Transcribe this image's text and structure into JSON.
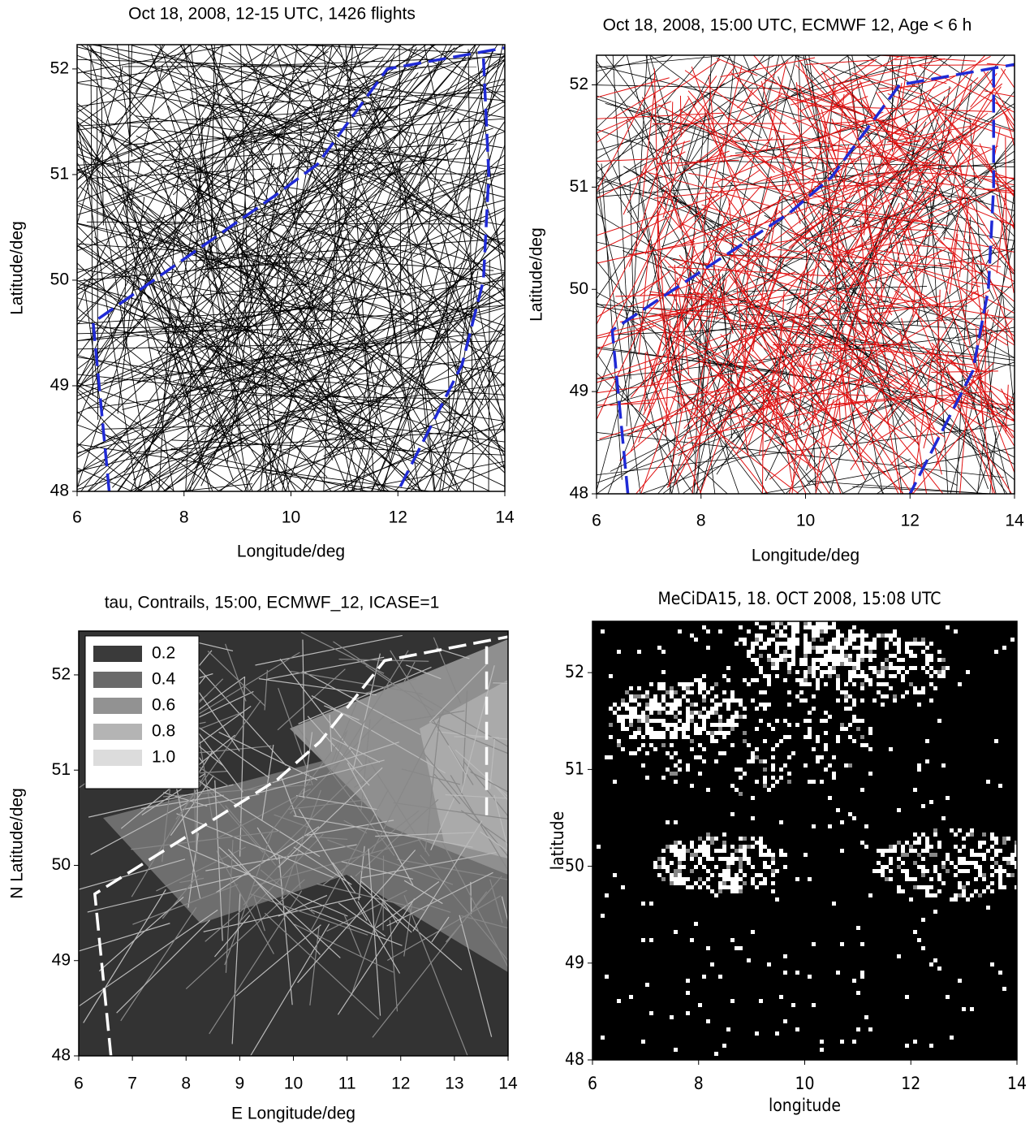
{
  "chart_data": [
    {
      "type": "line",
      "title": "Oct 18, 2008, 12-15 UTC, 1426 flights",
      "xlabel": "Longitude/deg",
      "ylabel": "Latitude/deg",
      "xlim": [
        6,
        14
      ],
      "ylim": [
        48,
        52.23
      ],
      "xticks": [
        6,
        8,
        10,
        12,
        14
      ],
      "yticks": [
        48,
        49,
        50,
        51,
        52
      ],
      "series": [
        {
          "color": "#1f2ad6",
          "linestyle": "dashed",
          "x": [
            6.6,
            6.3,
            9.7,
            10.5,
            11.8,
            14,
            null,
            13.6,
            13.7,
            13.6,
            13.2,
            12
          ],
          "values": [
            48,
            49.6,
            50.8,
            51.1,
            52,
            52.2,
            null,
            52.1,
            51,
            50,
            49.2,
            48
          ]
        }
      ]
    },
    {
      "type": "line",
      "title": "Oct 18, 2008, 15:00 UTC, ECMWF 12, Age < 6 h",
      "xlabel": "Longitude/deg",
      "ylabel": "Latitude/deg",
      "xlim": [
        6,
        14
      ],
      "ylim": [
        48,
        52.29
      ],
      "xticks": [
        6,
        8,
        10,
        12,
        14
      ],
      "yticks": [
        48,
        49,
        50,
        51,
        52
      ],
      "series": [
        {
          "color": "#1f2ad6",
          "linestyle": "dashed",
          "x": [
            6.6,
            6.3,
            9.7,
            10.5,
            11.8,
            14,
            null,
            13.6,
            13.6,
            13.5,
            13.2,
            12
          ],
          "values": [
            48,
            49.6,
            50.75,
            51.1,
            52,
            52.2,
            null,
            52.15,
            51,
            50,
            49.2,
            48
          ]
        }
      ]
    },
    {
      "type": "line",
      "title": "tau, Contrails, 15:00, ECMWF_12, ICASE=1",
      "xlabel": "E Longitude/deg",
      "ylabel": "N Latitude/deg",
      "xlim": [
        6,
        14
      ],
      "ylim": [
        48,
        52.46
      ],
      "xticks": [
        6,
        7,
        8,
        9,
        10,
        11,
        12,
        13,
        14
      ],
      "yticks": [
        48,
        49,
        50,
        51,
        52
      ],
      "legend": {
        "location": "upper left",
        "entries": [
          {
            "label": "0.2",
            "color": "#3a3a3a"
          },
          {
            "label": "0.4",
            "color": "#6a6a6a"
          },
          {
            "label": "0.6",
            "color": "#929292"
          },
          {
            "label": "0.8",
            "color": "#b4b4b4"
          },
          {
            "label": "1.0",
            "color": "#dcdcdc"
          }
        ]
      },
      "series": [
        {
          "color": "#ffffff",
          "linestyle": "dashed",
          "x": [
            6.6,
            6.3,
            9.7,
            10.5,
            11.7,
            14,
            null,
            13.6,
            13.6
          ],
          "values": [
            48,
            49.7,
            50.9,
            51.3,
            52.15,
            52.4,
            null,
            52.3,
            50.5
          ]
        }
      ]
    },
    {
      "type": "raster",
      "title": "MeCiDA15, 18. OCT 2008, 15:08 UTC",
      "xlabel": "longitude",
      "ylabel": "latitude",
      "xlim": [
        6,
        14
      ],
      "ylim": [
        48,
        52.53
      ],
      "xticks": [
        6,
        8,
        10,
        12,
        14
      ],
      "yticks": [
        48,
        49,
        50,
        51,
        52
      ]
    }
  ]
}
